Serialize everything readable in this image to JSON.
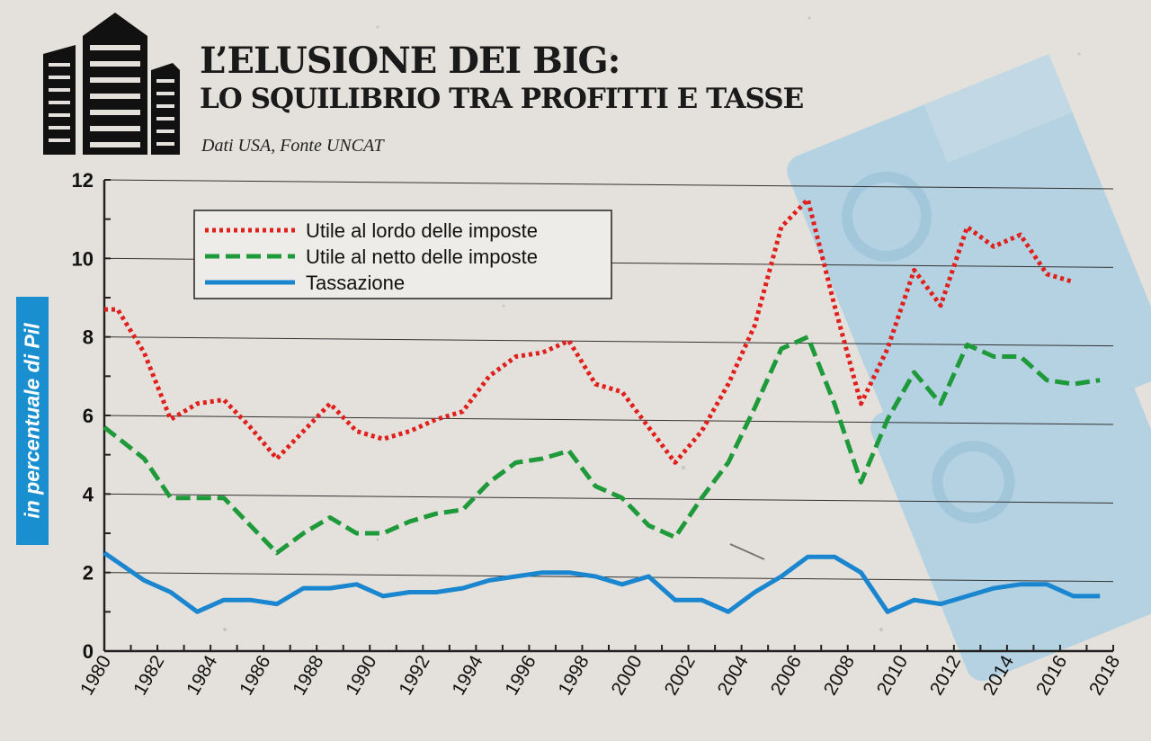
{
  "header": {
    "title_line1": "L’ELUSIONE DEI BIG:",
    "title_line2": "LO SQUILIBRIO TRA PROFITTI E TASSE",
    "source": "Dati USA, Fonte UNCAT"
  },
  "icons": {
    "building": "skyscrapers-icon",
    "background": "euro-credit-card-icon"
  },
  "colors": {
    "background": "#e4e1dc",
    "title": "#1a1a1a",
    "ylabel_box": "#1a8fd0",
    "gridline": "#333333",
    "card_watermark": "#8ec6e6"
  },
  "chart_data": {
    "type": "line",
    "title": "",
    "xlabel": "",
    "ylabel": "in percentuale di Pil",
    "xlim": [
      1980,
      2018
    ],
    "ylim": [
      0,
      12
    ],
    "x_ticks": [
      "1980",
      "1982",
      "1984",
      "1986",
      "1988",
      "1990",
      "1992",
      "1994",
      "1996",
      "1998",
      "2000",
      "2002",
      "2004",
      "2006",
      "2008",
      "2010",
      "2012",
      "2014",
      "2016",
      "2018"
    ],
    "y_ticks": [
      "0",
      "2",
      "4",
      "6",
      "8",
      "10",
      "12"
    ],
    "grid": true,
    "legend_position": "top-left",
    "series": [
      {
        "name": "Utile al lordo delle imposte",
        "color": "#e0201c",
        "style": "dotted",
        "points": [
          [
            1980,
            8.7
          ],
          [
            1980.5,
            8.7
          ],
          [
            1981.5,
            7.6
          ],
          [
            1982.5,
            5.9
          ],
          [
            1983.5,
            6.3
          ],
          [
            1984.5,
            6.4
          ],
          [
            1985.5,
            5.7
          ],
          [
            1986.5,
            4.9
          ],
          [
            1987.5,
            5.6
          ],
          [
            1988.5,
            6.3
          ],
          [
            1989.5,
            5.6
          ],
          [
            1990.5,
            5.4
          ],
          [
            1991.5,
            5.6
          ],
          [
            1992.5,
            5.9
          ],
          [
            1993.5,
            6.1
          ],
          [
            1994.5,
            7.0
          ],
          [
            1995.5,
            7.5
          ],
          [
            1996.5,
            7.6
          ],
          [
            1997.5,
            7.9
          ],
          [
            1998.5,
            6.8
          ],
          [
            1999.5,
            6.6
          ],
          [
            2000.5,
            5.7
          ],
          [
            2001.5,
            4.8
          ],
          [
            2002.5,
            5.6
          ],
          [
            2003.5,
            6.8
          ],
          [
            2004.5,
            8.3
          ],
          [
            2005.5,
            10.8
          ],
          [
            2006.5,
            11.5
          ],
          [
            2007.5,
            8.8
          ],
          [
            2008.5,
            6.3
          ],
          [
            2009.5,
            7.7
          ],
          [
            2010.5,
            9.7
          ],
          [
            2011.5,
            8.8
          ],
          [
            2012.5,
            10.8
          ],
          [
            2013.5,
            10.3
          ],
          [
            2014.5,
            10.6
          ],
          [
            2015.5,
            9.6
          ],
          [
            2016.5,
            9.4
          ]
        ]
      },
      {
        "name": "Utile al netto delle imposte",
        "color": "#1f9a3a",
        "style": "dashed",
        "points": [
          [
            1980,
            5.7
          ],
          [
            1981.5,
            4.9
          ],
          [
            1982.5,
            3.9
          ],
          [
            1983.5,
            3.9
          ],
          [
            1984.5,
            3.9
          ],
          [
            1985.5,
            3.2
          ],
          [
            1986.5,
            2.5
          ],
          [
            1987.5,
            3.0
          ],
          [
            1988.5,
            3.4
          ],
          [
            1989.5,
            3.0
          ],
          [
            1990.5,
            3.0
          ],
          [
            1991.5,
            3.3
          ],
          [
            1992.5,
            3.5
          ],
          [
            1993.5,
            3.6
          ],
          [
            1994.5,
            4.3
          ],
          [
            1995.5,
            4.8
          ],
          [
            1996.5,
            4.9
          ],
          [
            1997.5,
            5.1
          ],
          [
            1998.5,
            4.2
          ],
          [
            1999.5,
            3.9
          ],
          [
            2000.5,
            3.2
          ],
          [
            2001.5,
            2.9
          ],
          [
            2002.5,
            3.9
          ],
          [
            2003.5,
            4.8
          ],
          [
            2004.5,
            6.2
          ],
          [
            2005.5,
            7.7
          ],
          [
            2006.5,
            8.0
          ],
          [
            2007.5,
            6.3
          ],
          [
            2008.5,
            4.3
          ],
          [
            2009.5,
            5.9
          ],
          [
            2010.5,
            7.1
          ],
          [
            2011.5,
            6.3
          ],
          [
            2012.5,
            7.8
          ],
          [
            2013.5,
            7.5
          ],
          [
            2014.5,
            7.5
          ],
          [
            2015.5,
            6.9
          ],
          [
            2016.5,
            6.8
          ],
          [
            2017.5,
            6.9
          ]
        ]
      },
      {
        "name": "Tassazione",
        "color": "#1a86cf",
        "style": "solid",
        "points": [
          [
            1980,
            2.5
          ],
          [
            1981.5,
            1.8
          ],
          [
            1982.5,
            1.5
          ],
          [
            1983.5,
            1.0
          ],
          [
            1984.5,
            1.3
          ],
          [
            1985.5,
            1.3
          ],
          [
            1986.5,
            1.2
          ],
          [
            1987.5,
            1.6
          ],
          [
            1988.5,
            1.6
          ],
          [
            1989.5,
            1.7
          ],
          [
            1990.5,
            1.4
          ],
          [
            1991.5,
            1.5
          ],
          [
            1992.5,
            1.5
          ],
          [
            1993.5,
            1.6
          ],
          [
            1994.5,
            1.8
          ],
          [
            1995.5,
            1.9
          ],
          [
            1996.5,
            2.0
          ],
          [
            1997.5,
            2.0
          ],
          [
            1998.5,
            1.9
          ],
          [
            1999.5,
            1.7
          ],
          [
            2000.5,
            1.9
          ],
          [
            2001.5,
            1.3
          ],
          [
            2002.5,
            1.3
          ],
          [
            2003.5,
            1.0
          ],
          [
            2004.5,
            1.5
          ],
          [
            2005.5,
            1.9
          ],
          [
            2006.5,
            2.4
          ],
          [
            2007.5,
            2.4
          ],
          [
            2008.5,
            2.0
          ],
          [
            2009.5,
            1.0
          ],
          [
            2010.5,
            1.3
          ],
          [
            2011.5,
            1.2
          ],
          [
            2012.5,
            1.4
          ],
          [
            2013.5,
            1.6
          ],
          [
            2014.5,
            1.7
          ],
          [
            2015.5,
            1.7
          ],
          [
            2016.5,
            1.4
          ],
          [
            2017.5,
            1.4
          ]
        ]
      }
    ]
  }
}
